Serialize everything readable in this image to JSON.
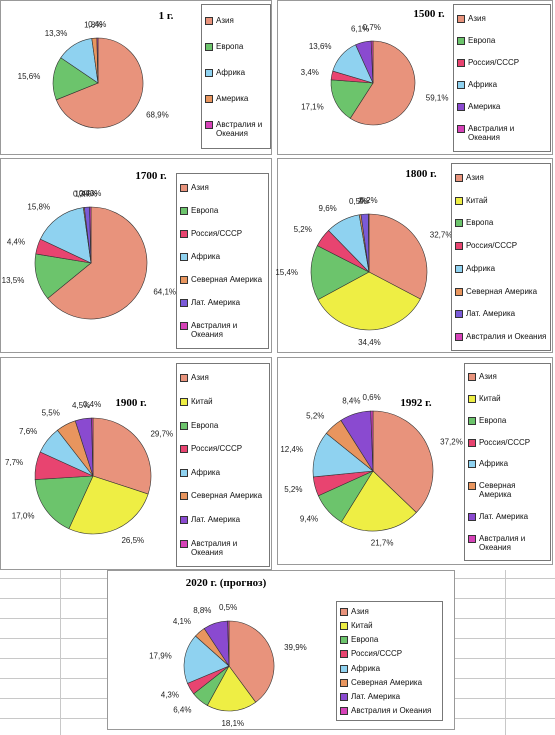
{
  "chart_data": [
    {
      "type": "pie",
      "title": "1 г.",
      "categories": [
        "Азия",
        "Европа",
        "Африка",
        "Америка",
        "Австралия и Океания"
      ],
      "values": [
        68.9,
        15.6,
        13.3,
        1.8,
        0.4
      ],
      "value_labels": [
        "68,9%",
        "15,6%",
        "13,3%",
        "1,8%",
        "0,4%"
      ],
      "colors": [
        "#e8937c",
        "#6cc46c",
        "#8fd2f0",
        "#e8955e",
        "#d642b8"
      ]
    },
    {
      "type": "pie",
      "title": "1500 г.",
      "categories": [
        "Азия",
        "Европа",
        "Россия/СССР",
        "Африка",
        "Америка",
        "Австралия и Океания"
      ],
      "values": [
        59.1,
        17.1,
        3.4,
        13.6,
        6.1,
        0.7
      ],
      "value_labels": [
        "59,1%",
        "17,1%",
        "3,4%",
        "13,6%",
        "6,1%",
        "0,7%"
      ],
      "colors": [
        "#e8937c",
        "#6cc46c",
        "#e84470",
        "#8fd2f0",
        "#8a4ad0",
        "#d642b8"
      ]
    },
    {
      "type": "pie",
      "title": "1700 г.",
      "categories": [
        "Азия",
        "Европа",
        "Россия/СССР",
        "Африка",
        "Северная Америка",
        "Лат. Америка",
        "Австралия и Океания"
      ],
      "values": [
        64.1,
        13.5,
        4.4,
        15.8,
        0.3,
        1.47,
        0.43
      ],
      "value_labels": [
        "64,1%",
        "13,5%",
        "4,4%",
        "15,8%",
        "0,3%",
        "1,47%",
        "0,43%"
      ],
      "colors": [
        "#e8937c",
        "#6cc46c",
        "#e84470",
        "#8fd2f0",
        "#e8955e",
        "#7a5ad8",
        "#d642b8"
      ]
    },
    {
      "type": "pie",
      "title": "1800 г.",
      "categories": [
        "Азия",
        "Китай",
        "Европа",
        "Россия/СССР",
        "Африка",
        "Северная Америка",
        "Лат. Америка",
        "Австралия и Океания"
      ],
      "values": [
        32.7,
        34.4,
        15.4,
        5.2,
        9.6,
        0.5,
        2,
        0.2
      ],
      "value_labels": [
        "32,7%",
        "34,4%",
        "15,4%",
        "5,2%",
        "9,6%",
        "0,5%",
        "2%",
        "0,2%"
      ],
      "colors": [
        "#e8937c",
        "#eeee44",
        "#6cc46c",
        "#e84470",
        "#8fd2f0",
        "#e8955e",
        "#7a5ad8",
        "#d642b8"
      ]
    },
    {
      "type": "pie",
      "title": "1900 г.",
      "categories": [
        "Азия",
        "Китай",
        "Европа",
        "Россия/СССР",
        "Африка",
        "Северная Америка",
        "Лат. Америка",
        "Австралия и Океания"
      ],
      "values": [
        29.7,
        26.5,
        17.0,
        7.7,
        7.6,
        5.5,
        4.5,
        0.4
      ],
      "value_labels": [
        "29,7%",
        "26,5%",
        "17,0%",
        "7,7%",
        "7,6%",
        "5,5%",
        "4,5%",
        "0,4%"
      ],
      "colors": [
        "#e8937c",
        "#eeee44",
        "#6cc46c",
        "#e84470",
        "#8fd2f0",
        "#e8955e",
        "#8a4ad0",
        "#d642b8"
      ]
    },
    {
      "type": "pie",
      "title": "1992 г.",
      "categories": [
        "Азия",
        "Китай",
        "Европа",
        "Россия/СССР",
        "Африка",
        "Северная Америка",
        "Лат. Америка",
        "Австралия и Океания"
      ],
      "values": [
        37.2,
        21.7,
        9.4,
        5.2,
        12.4,
        5.2,
        8.4,
        0.6
      ],
      "value_labels": [
        "37,2%",
        "21,7%",
        "9,4%",
        "5,2%",
        "12,4%",
        "5,2%",
        "8,4%",
        "0,6%"
      ],
      "colors": [
        "#e8937c",
        "#eeee44",
        "#6cc46c",
        "#e84470",
        "#8fd2f0",
        "#e8955e",
        "#8a4ad0",
        "#d642b8"
      ]
    },
    {
      "type": "pie",
      "title": "2020 г. (прогноз)",
      "categories": [
        "Азия",
        "Китай",
        "Европа",
        "Россия/СССР",
        "Африка",
        "Северная Америка",
        "Лат. Америка",
        "Австралия и Океания"
      ],
      "values": [
        39.9,
        18.1,
        6.4,
        4.3,
        17.9,
        4.1,
        8.8,
        0.5
      ],
      "value_labels": [
        "39,9%",
        "18,1%",
        "6,4%",
        "4,3%",
        "17,9%",
        "4,1%",
        "8,8%",
        "0,5%"
      ],
      "colors": [
        "#e8937c",
        "#eeee44",
        "#6cc46c",
        "#e84470",
        "#8fd2f0",
        "#e8955e",
        "#8a4ad0",
        "#d642b8"
      ]
    }
  ]
}
